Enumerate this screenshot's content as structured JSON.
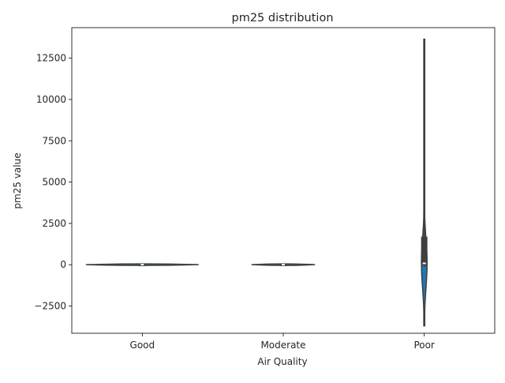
{
  "chart_data": {
    "type": "violin",
    "title": "pm25 distribution",
    "xlabel": "Air Quality",
    "ylabel": "pm25 value",
    "categories": [
      "Good",
      "Moderate",
      "Poor"
    ],
    "ylim": [
      -4150,
      14350
    ],
    "yticks": [
      -2500,
      0,
      2500,
      5000,
      7500,
      10000,
      12500
    ],
    "ytick_labels": [
      "−2500",
      "0",
      "2500",
      "5000",
      "7500",
      "10000",
      "12500"
    ],
    "grid": false,
    "legend": "none",
    "violins": [
      {
        "category": "Good",
        "min": -25,
        "max": 25,
        "q1": -5,
        "median": 0,
        "q3": 5,
        "whisker_low": -15,
        "whisker_high": 15,
        "width_fraction": 0.8
      },
      {
        "category": "Moderate",
        "min": -40,
        "max": 60,
        "q1": -5,
        "median": 0,
        "q3": 10,
        "whisker_low": -25,
        "whisker_high": 35,
        "width_fraction": 0.45
      },
      {
        "category": "Poor",
        "min": -3700,
        "max": 13650,
        "q1": -50,
        "median": 80,
        "q3": 1700,
        "whisker_low": -150,
        "whisker_high": 3300,
        "width_fraction": 0.04
      }
    ],
    "colors": {
      "fill": "#1f77b4",
      "edge": "#3f3f3f",
      "box": "#3f3f3f",
      "median": "#ffffff"
    }
  }
}
